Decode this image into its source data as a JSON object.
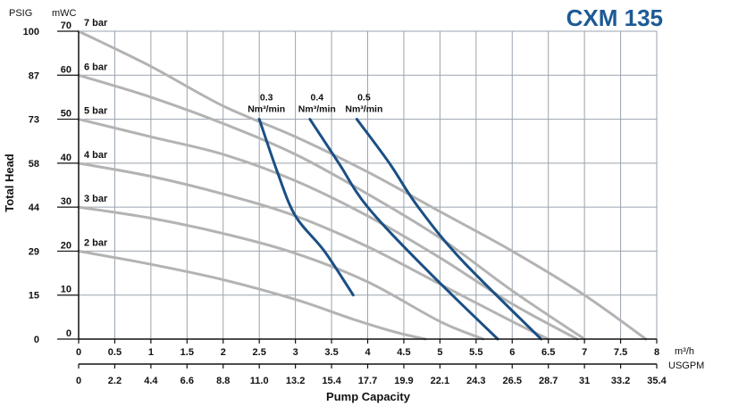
{
  "chart_data": {
    "type": "line",
    "title": "CXM 135",
    "xlabel": "Pump Capacity",
    "ylabel": "Total Head",
    "x_unit_primary": "m³/h",
    "x_unit_secondary": "USGPM",
    "y_unit_left": "PSIG",
    "y_unit_right": "mWC",
    "xlim": [
      0,
      8
    ],
    "ylim": [
      0,
      70
    ],
    "x_ticks": [
      0,
      0.5,
      1,
      1.5,
      2,
      2.5,
      3,
      3.5,
      4,
      4.5,
      5,
      5.5,
      6,
      6.5,
      7,
      7.5,
      8
    ],
    "x_tick_labels_m3h": [
      "0",
      "0.5",
      "1",
      "1.5",
      "2",
      "2.5",
      "3",
      "3.5",
      "4",
      "4.5",
      "5",
      "5.5",
      "6",
      "6.5",
      "7",
      "7.5",
      "8"
    ],
    "x_tick_labels_usgpm": [
      "0",
      "2.2",
      "4.4",
      "6.6",
      "8.8",
      "11.0",
      "13.2",
      "15.4",
      "17.7",
      "19.9",
      "22.1",
      "24.3",
      "26.5",
      "28.7",
      "31",
      "33.2",
      "35.4"
    ],
    "y_ticks": [
      0,
      10,
      20,
      30,
      40,
      50,
      60,
      70
    ],
    "y_tick_labels_mwc": [
      "0",
      "10",
      "20",
      "30",
      "40",
      "50",
      "60",
      "70"
    ],
    "y_tick_labels_psig": [
      "0",
      "15",
      "29",
      "44",
      "58",
      "73",
      "87",
      "100"
    ],
    "grid": true,
    "series": [
      {
        "name": "2 bar",
        "group": "pressure",
        "x": [
          0,
          1.0,
          2.0,
          3.0,
          3.8,
          4.4,
          4.8
        ],
        "y": [
          20,
          17,
          13.5,
          9,
          4.5,
          1.5,
          0
        ]
      },
      {
        "name": "3 bar",
        "group": "pressure",
        "x": [
          0,
          1.0,
          2.0,
          3.0,
          4.0,
          5.0,
          5.6
        ],
        "y": [
          30,
          27.5,
          24,
          19.5,
          13,
          4,
          0
        ]
      },
      {
        "name": "4 bar",
        "group": "pressure",
        "x": [
          0,
          1.0,
          2.0,
          3.0,
          4.0,
          5.0,
          6.0,
          6.5
        ],
        "y": [
          40,
          37,
          33,
          28,
          21,
          12.5,
          4,
          0
        ]
      },
      {
        "name": "5 bar",
        "group": "pressure",
        "x": [
          0,
          1.0,
          2.0,
          3.0,
          4.0,
          5.0,
          6.0,
          6.9
        ],
        "y": [
          50,
          46,
          42,
          36,
          28,
          18.5,
          8,
          0
        ]
      },
      {
        "name": "6 bar",
        "group": "pressure",
        "x": [
          0,
          1.0,
          2.0,
          3.0,
          4.0,
          5.0,
          6.0,
          7.0
        ],
        "y": [
          60,
          55,
          49,
          42,
          33,
          23,
          11,
          0
        ]
      },
      {
        "name": "7 bar",
        "group": "pressure",
        "x": [
          0,
          1.0,
          2.0,
          3.0,
          4.0,
          5.0,
          6.0,
          7.0,
          7.85
        ],
        "y": [
          70,
          62,
          53,
          46,
          38,
          29,
          20,
          10,
          0
        ]
      },
      {
        "name": "0.3 Nm³/min",
        "group": "air",
        "x": [
          2.5,
          2.75,
          3.0,
          3.4,
          3.8
        ],
        "y": [
          50,
          38,
          28,
          20,
          10
        ]
      },
      {
        "name": "0.4 Nm³/min",
        "group": "air",
        "x": [
          3.2,
          3.6,
          4.0,
          4.8,
          5.8
        ],
        "y": [
          50,
          40,
          30,
          16,
          0
        ]
      },
      {
        "name": "0.5 Nm³/min",
        "group": "air",
        "x": [
          3.85,
          4.3,
          4.7,
          5.3,
          6.4
        ],
        "y": [
          50,
          40,
          30,
          18,
          0
        ]
      }
    ],
    "series_labels": {
      "pressure": [
        "2 bar",
        "3 bar",
        "4 bar",
        "5 bar",
        "6 bar",
        "7 bar"
      ],
      "air_value": [
        "0.3",
        "0.4",
        "0.5"
      ],
      "air_unit": "Nm³/min"
    }
  },
  "colors": {
    "pressure_curve": "#b3b3b3",
    "air_curve": "#1b4f84",
    "title": "#1d5a95",
    "grid": "#9aa3ad"
  }
}
